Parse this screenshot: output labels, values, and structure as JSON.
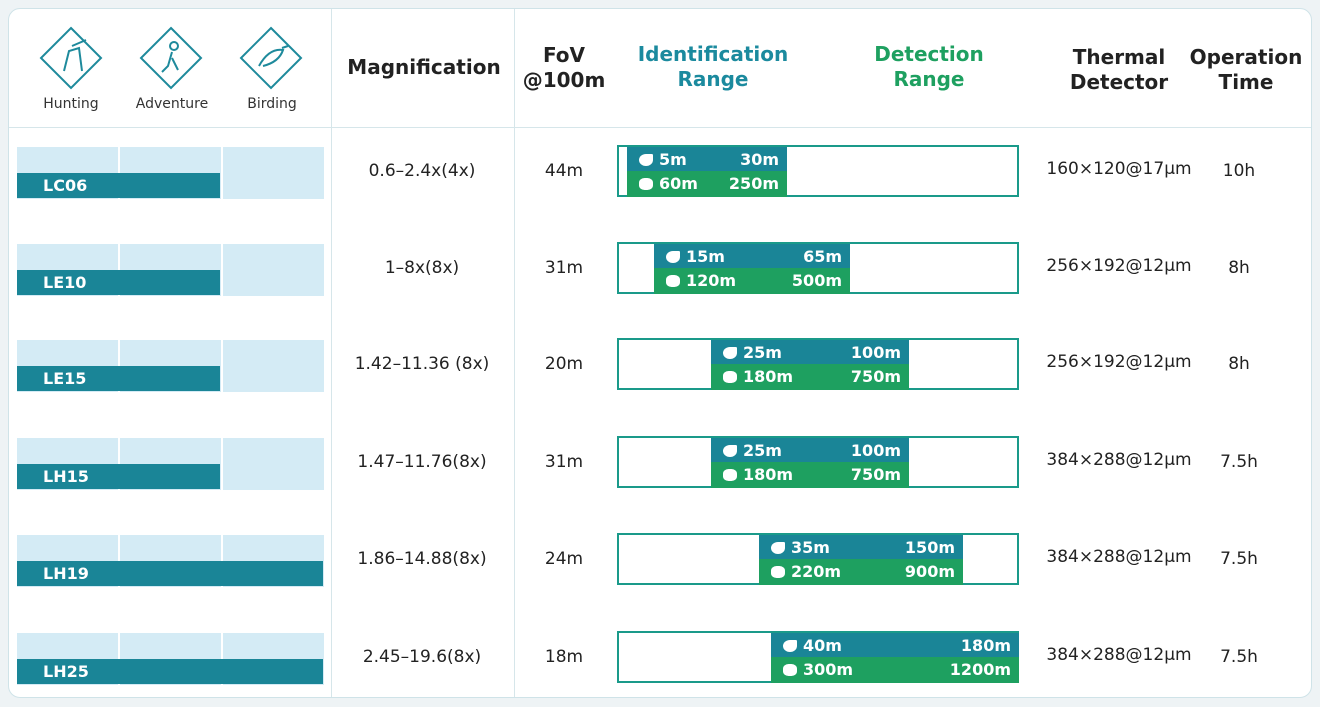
{
  "header": {
    "usage": [
      "Hunting",
      "Adventure",
      "Birding"
    ],
    "magnification": "Magnification",
    "fov": [
      "FoV",
      "@100m"
    ],
    "identification": [
      "Identification",
      "Range"
    ],
    "detection": [
      "Detection",
      "Range"
    ],
    "thermal": [
      "Thermal",
      "Detector"
    ],
    "operation": [
      "Operation",
      "Time"
    ]
  },
  "rows": [
    {
      "model": "LC06",
      "magnification": "0.6–2.4x(4x)",
      "fov": "44m",
      "bird": {
        "identification": "5m",
        "detection": "30m"
      },
      "animal": {
        "identification": "60m",
        "detection": "250m"
      },
      "thermal": "160×120@17μm",
      "operation": "10h"
    },
    {
      "model": "LE10",
      "magnification": "1–8x(8x)",
      "fov": "31m",
      "bird": {
        "identification": "15m",
        "detection": "65m"
      },
      "animal": {
        "identification": "120m",
        "detection": "500m"
      },
      "thermal": "256×192@12μm",
      "operation": "8h"
    },
    {
      "model": "LE15",
      "magnification": "1.42–11.36 (8x)",
      "fov": "20m",
      "bird": {
        "identification": "25m",
        "detection": "100m"
      },
      "animal": {
        "identification": "180m",
        "detection": "750m"
      },
      "thermal": "256×192@12μm",
      "operation": "8h"
    },
    {
      "model": "LH15",
      "magnification": "1.47–11.76(8x)",
      "fov": "31m",
      "bird": {
        "identification": "25m",
        "detection": "100m"
      },
      "animal": {
        "identification": "180m",
        "detection": "750m"
      },
      "thermal": "384×288@12μm",
      "operation": "7.5h"
    },
    {
      "model": "LH19",
      "magnification": "1.86–14.88(8x)",
      "fov": "24m",
      "bird": {
        "identification": "35m",
        "detection": "150m"
      },
      "animal": {
        "identification": "220m",
        "detection": "900m"
      },
      "thermal": "384×288@12μm",
      "operation": "7.5h"
    },
    {
      "model": "LH25",
      "magnification": "2.45–19.6(8x)",
      "fov": "18m",
      "bird": {
        "identification": "40m",
        "detection": "180m"
      },
      "animal": {
        "identification": "300m",
        "detection": "1200m"
      },
      "thermal": "384×288@12μm",
      "operation": "7.5h"
    }
  ]
}
